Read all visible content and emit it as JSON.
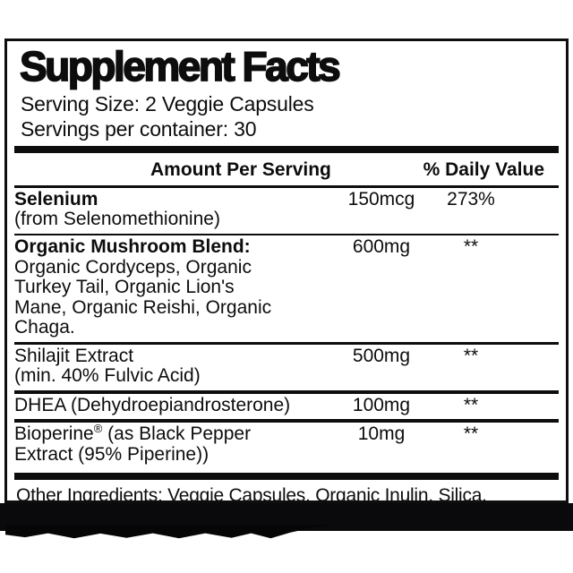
{
  "colors": {
    "background": "#ffffff",
    "ink": "#0d0d0d",
    "band": "#0a0a0c"
  },
  "label": {
    "title": "Supplement Facts",
    "serving_size": "Serving Size: 2 Veggie Capsules",
    "servings_per_container": "Servings per container: 30",
    "columns": {
      "amount": "Amount Per Serving",
      "daily_value": "% Daily Value"
    },
    "rows": [
      {
        "name": "Selenium",
        "desc": "(from Selenomethionine)",
        "amount": "150mcg",
        "dv": "273%"
      },
      {
        "name": "Organic Mushroom Blend:",
        "desc": "Organic Cordyceps, Organic Turkey Tail, Organic Lion's Mane, Organic Reishi, Organic Chaga.",
        "amount": "600mg",
        "dv": "**"
      },
      {
        "name": "Shilajit Extract",
        "desc": "(min. 40% Fulvic Acid)",
        "amount": "500mg",
        "dv": "**"
      },
      {
        "name": "DHEA (Dehydroepiandrosterone)",
        "amount": "100mg",
        "dv": "**"
      },
      {
        "name": "Bioperine",
        "reg_mark": "®",
        "name_rest": " (as Black Pepper Extract (95% Piperine))",
        "amount": "10mg",
        "dv": "**"
      }
    ],
    "other_ingredients": "Other Ingredients: Veggie Capsules, Organic Inulin, Silica."
  }
}
